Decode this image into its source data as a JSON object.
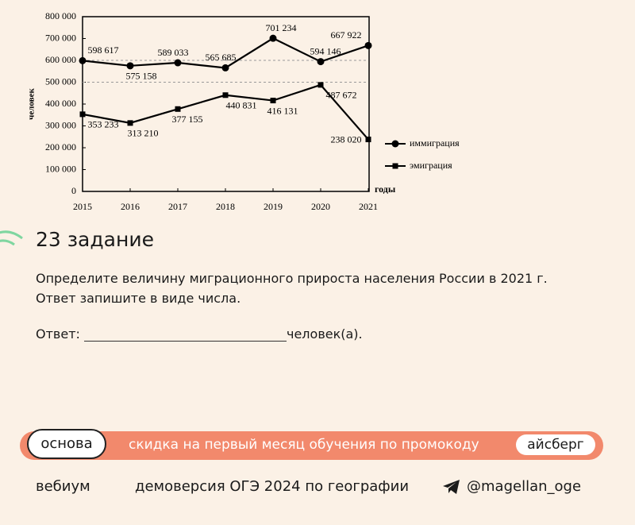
{
  "chart_data": {
    "type": "line",
    "x": [
      2015,
      2016,
      2017,
      2018,
      2019,
      2020,
      2021
    ],
    "xlim": [
      2015,
      2021
    ],
    "xticks": [
      2015,
      2016,
      2017,
      2018,
      2019,
      2020,
      2021
    ],
    "ylim": [
      0,
      800000
    ],
    "yticks": [
      0,
      {
        "value": 100000,
        "label": "100 000"
      },
      {
        "value": 200000,
        "label": "200 000"
      },
      {
        "value": 300000,
        "label": "300 000"
      },
      {
        "value": 400000,
        "label": "400 000"
      },
      {
        "value": 500000,
        "label": "500 000"
      },
      {
        "value": 600000,
        "label": "600 000"
      },
      {
        "value": 700000,
        "label": "700 000"
      },
      {
        "value": 800000,
        "label": "800 000"
      }
    ],
    "y_label": "человек",
    "x_label": "годы",
    "dashed_gridlines": [
      500000,
      600000
    ],
    "legend": "right",
    "series": [
      {
        "name": "иммиграция",
        "marker": "circle",
        "color": "#000000",
        "values": [
          598617,
          575158,
          589033,
          565685,
          701234,
          594146,
          667922
        ],
        "value_labels": [
          "598 617",
          "575 158",
          "589 033",
          "565 685",
          "701 234",
          "594 146",
          "667 922"
        ]
      },
      {
        "name": "эмиграция",
        "marker": "square",
        "color": "#000000",
        "values": [
          353233,
          313210,
          377155,
          440831,
          416131,
          487672,
          238020
        ],
        "value_labels": [
          "353 233",
          "313 210",
          "377 155",
          "440 831",
          "416 131",
          "487 672",
          "238 020"
        ]
      }
    ]
  },
  "task": {
    "title": "23 задание",
    "question": [
      "Определите величину миграционного прироста населения России в 2021 г.",
      "Ответ запишите в виде числа."
    ],
    "answer_prefix": "Ответ:",
    "answer_suffix": "человек(а)."
  },
  "promo": {
    "badge": "основа",
    "text": "скидка на первый месяц обучения по промокоду",
    "code": "айсберг"
  },
  "footer": {
    "brand": "вебиум",
    "caption": "демоверсия ОГЭ 2024 по географии",
    "channel": "@magellan_oge"
  }
}
